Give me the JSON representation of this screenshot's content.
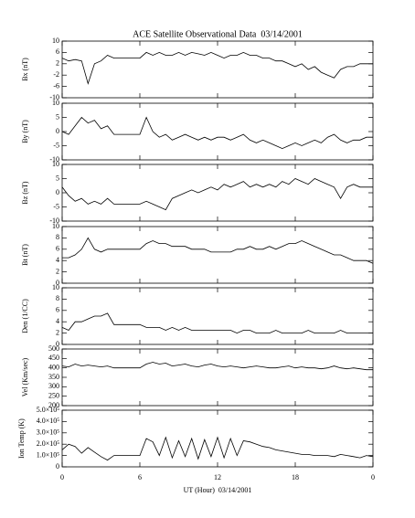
{
  "chart_data": [
    {
      "type": "line",
      "title": "ACE Satellite Observational Data  03/14/2001",
      "ylabel": "Bx (nT)",
      "ylim": [
        -10,
        10
      ],
      "yticks": [
        -10,
        -6,
        -2,
        2,
        6,
        10
      ],
      "xlim": [
        0,
        24
      ],
      "color": "#000000",
      "x": [
        0,
        0.5,
        1,
        1.5,
        2,
        2.5,
        3,
        3.5,
        4,
        4.5,
        5,
        5.5,
        6,
        6.5,
        7,
        7.5,
        8,
        8.5,
        9,
        9.5,
        10,
        10.5,
        11,
        11.5,
        12,
        12.5,
        13,
        13.5,
        14,
        14.5,
        15,
        15.5,
        16,
        16.5,
        17,
        17.5,
        18,
        18.5,
        19,
        19.5,
        20,
        20.5,
        21,
        21.5,
        22,
        22.5,
        23,
        23.5,
        24
      ],
      "values": [
        4,
        3,
        3.5,
        3,
        -5,
        2,
        3,
        5,
        4,
        4,
        4,
        4,
        4,
        6,
        5,
        6,
        5,
        5,
        6,
        5,
        6,
        5.5,
        5,
        6,
        5,
        4,
        5,
        5,
        6,
        5,
        5,
        4,
        4,
        3,
        3,
        2,
        1,
        2,
        0,
        1,
        -1,
        -2,
        -3,
        0,
        1,
        1,
        2,
        2,
        2
      ]
    },
    {
      "type": "line",
      "ylabel": "By (nT)",
      "ylim": [
        -10,
        10
      ],
      "yticks": [
        -10,
        -5,
        0,
        5,
        10
      ],
      "xlim": [
        0,
        24
      ],
      "color": "#000000",
      "x": [
        0,
        0.5,
        1,
        1.5,
        2,
        2.5,
        3,
        3.5,
        4,
        4.5,
        5,
        5.5,
        6,
        6.5,
        7,
        7.5,
        8,
        8.5,
        9,
        9.5,
        10,
        10.5,
        11,
        11.5,
        12,
        12.5,
        13,
        13.5,
        14,
        14.5,
        15,
        15.5,
        16,
        16.5,
        17,
        17.5,
        18,
        18.5,
        19,
        19.5,
        20,
        20.5,
        21,
        21.5,
        22,
        22.5,
        23,
        23.5,
        24
      ],
      "values": [
        0,
        -1,
        2,
        5,
        3,
        4,
        1,
        2,
        -1,
        -1,
        -1,
        -1,
        -1,
        5,
        0,
        -2,
        -1,
        -3,
        -2,
        -1,
        -2,
        -3,
        -2,
        -3,
        -2,
        -2,
        -3,
        -2,
        -1,
        -3,
        -4,
        -3,
        -4,
        -5,
        -6,
        -5,
        -4,
        -5,
        -4,
        -3,
        -4,
        -2,
        -1,
        -3,
        -4,
        -3,
        -3,
        -2,
        -2
      ]
    },
    {
      "type": "line",
      "ylabel": "Bz (nT)",
      "ylim": [
        -10,
        10
      ],
      "yticks": [
        -10,
        -5,
        0,
        5,
        10
      ],
      "xlim": [
        0,
        24
      ],
      "color": "#000000",
      "x": [
        0,
        0.5,
        1,
        1.5,
        2,
        2.5,
        3,
        3.5,
        4,
        4.5,
        5,
        5.5,
        6,
        6.5,
        7,
        7.5,
        8,
        8.5,
        9,
        9.5,
        10,
        10.5,
        11,
        11.5,
        12,
        12.5,
        13,
        13.5,
        14,
        14.5,
        15,
        15.5,
        16,
        16.5,
        17,
        17.5,
        18,
        18.5,
        19,
        19.5,
        20,
        20.5,
        21,
        21.5,
        22,
        22.5,
        23,
        23.5,
        24
      ],
      "values": [
        2,
        -1,
        -3,
        -2,
        -4,
        -3,
        -4,
        -2,
        -4,
        -4,
        -4,
        -4,
        -4,
        -3,
        -4,
        -5,
        -6,
        -2,
        -1,
        0,
        1,
        0,
        1,
        2,
        1,
        3,
        2,
        3,
        4,
        2,
        3,
        2,
        3,
        2,
        4,
        3,
        5,
        4,
        3,
        5,
        4,
        3,
        2,
        -2,
        2,
        3,
        2,
        2,
        2
      ]
    },
    {
      "type": "line",
      "ylabel": "Bt (nT)",
      "ylim": [
        0,
        10
      ],
      "yticks": [
        0,
        2,
        4,
        6,
        8,
        10
      ],
      "xlim": [
        0,
        24
      ],
      "color": "#000000",
      "x": [
        0,
        0.5,
        1,
        1.5,
        2,
        2.5,
        3,
        3.5,
        4,
        4.5,
        5,
        5.5,
        6,
        6.5,
        7,
        7.5,
        8,
        8.5,
        9,
        9.5,
        10,
        10.5,
        11,
        11.5,
        12,
        12.5,
        13,
        13.5,
        14,
        14.5,
        15,
        15.5,
        16,
        16.5,
        17,
        17.5,
        18,
        18.5,
        19,
        19.5,
        20,
        20.5,
        21,
        21.5,
        22,
        22.5,
        23,
        23.5,
        24
      ],
      "values": [
        4.5,
        4.5,
        5,
        6,
        8,
        6,
        5.5,
        6,
        6,
        6,
        6,
        6,
        6,
        7,
        7.5,
        7,
        7,
        6.5,
        6.5,
        6.5,
        6,
        6,
        6,
        5.5,
        5.5,
        5.5,
        5.5,
        6,
        6,
        6.5,
        6,
        6,
        6.5,
        6,
        6.5,
        7,
        7,
        7.5,
        7,
        6.5,
        6,
        5.5,
        5,
        5,
        4.5,
        4,
        4,
        4,
        3.5
      ]
    },
    {
      "type": "line",
      "ylabel": "Den (1/CC)",
      "ylim": [
        0,
        10
      ],
      "yticks": [
        0,
        2,
        4,
        6,
        8,
        10
      ],
      "xlim": [
        0,
        24
      ],
      "color": "#000000",
      "x": [
        0,
        0.5,
        1,
        1.5,
        2,
        2.5,
        3,
        3.5,
        4,
        4.5,
        5,
        5.5,
        6,
        6.5,
        7,
        7.5,
        8,
        8.5,
        9,
        9.5,
        10,
        10.5,
        11,
        11.5,
        12,
        12.5,
        13,
        13.5,
        14,
        14.5,
        15,
        15.5,
        16,
        16.5,
        17,
        17.5,
        18,
        18.5,
        19,
        19.5,
        20,
        20.5,
        21,
        21.5,
        22,
        22.5,
        23,
        23.5,
        24
      ],
      "values": [
        3,
        2.5,
        4,
        4,
        4.5,
        5,
        5,
        5.5,
        3.5,
        3.5,
        3.5,
        3.5,
        3.5,
        3,
        3,
        3,
        2.5,
        3,
        2.5,
        3,
        2.5,
        2.5,
        2.5,
        2.5,
        2.5,
        2.5,
        2.5,
        2,
        2.5,
        2.5,
        2,
        2,
        2,
        2.5,
        2,
        2,
        2,
        2,
        2.5,
        2,
        2,
        2,
        2,
        2.5,
        2,
        2,
        2,
        2,
        2
      ]
    },
    {
      "type": "line",
      "ylabel": "Vel (Km/sec)",
      "ylim": [
        200,
        500
      ],
      "yticks": [
        200,
        250,
        300,
        350,
        400,
        450,
        500
      ],
      "xlim": [
        0,
        24
      ],
      "color": "#000000",
      "x": [
        0,
        0.5,
        1,
        1.5,
        2,
        2.5,
        3,
        3.5,
        4,
        4.5,
        5,
        5.5,
        6,
        6.5,
        7,
        7.5,
        8,
        8.5,
        9,
        9.5,
        10,
        10.5,
        11,
        11.5,
        12,
        12.5,
        13,
        13.5,
        14,
        14.5,
        15,
        15.5,
        16,
        16.5,
        17,
        17.5,
        18,
        18.5,
        19,
        19.5,
        20,
        20.5,
        21,
        21.5,
        22,
        22.5,
        23,
        23.5,
        24
      ],
      "values": [
        410,
        405,
        420,
        410,
        415,
        410,
        405,
        410,
        400,
        400,
        400,
        400,
        400,
        420,
        430,
        420,
        425,
        410,
        415,
        420,
        410,
        405,
        415,
        420,
        410,
        405,
        410,
        405,
        400,
        405,
        410,
        405,
        400,
        400,
        405,
        410,
        400,
        405,
        400,
        400,
        395,
        400,
        410,
        400,
        395,
        400,
        395,
        390,
        390
      ]
    },
    {
      "type": "line",
      "ylabel": "Ion Temp (K)",
      "ylim": [
        0,
        500000
      ],
      "yticks": [
        0,
        {
          "value": 100000,
          "label": "1.0×10⁵"
        },
        {
          "value": 200000,
          "label": "2.0×10⁵"
        },
        {
          "value": 300000,
          "label": "3.0×10⁵"
        },
        {
          "value": 400000,
          "label": "4.0×10⁵"
        },
        {
          "value": 500000,
          "label": "5.0×10⁵"
        }
      ],
      "xlim": [
        0,
        24
      ],
      "xticks": [
        0,
        6,
        12,
        18,
        {
          "value": 24,
          "label": "0"
        }
      ],
      "xlabel": "UT (Hour)  03/14/2001",
      "color": "#000000",
      "x": [
        0,
        0.5,
        1,
        1.5,
        2,
        2.5,
        3,
        3.5,
        4,
        4.5,
        5,
        5.5,
        6,
        6.5,
        7,
        7.5,
        8,
        8.5,
        9,
        9.5,
        10,
        10.5,
        11,
        11.5,
        12,
        12.5,
        13,
        13.5,
        14,
        14.5,
        15,
        15.5,
        16,
        16.5,
        17,
        17.5,
        18,
        18.5,
        19,
        19.5,
        20,
        20.5,
        21,
        21.5,
        22,
        22.5,
        23,
        23.5,
        24
      ],
      "values": [
        150000,
        200000,
        180000,
        120000,
        170000,
        130000,
        90000,
        60000,
        100000,
        100000,
        100000,
        100000,
        100000,
        250000,
        220000,
        100000,
        260000,
        80000,
        230000,
        90000,
        250000,
        70000,
        240000,
        90000,
        260000,
        80000,
        250000,
        100000,
        230000,
        220000,
        200000,
        180000,
        170000,
        150000,
        140000,
        130000,
        120000,
        110000,
        110000,
        100000,
        100000,
        100000,
        90000,
        110000,
        100000,
        90000,
        80000,
        100000,
        90000
      ]
    }
  ]
}
